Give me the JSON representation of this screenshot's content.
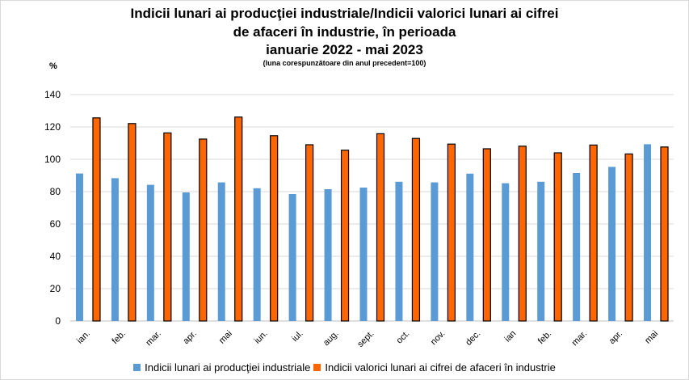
{
  "chart_data": {
    "type": "bar",
    "title_lines": [
      "Indicii lunari ai producţiei industriale/Indicii valorici lunari ai cifrei",
      "de afaceri în industrie, în perioada",
      "ianuarie 2022 - mai 2023"
    ],
    "subtitle": "(luna corespunzătoare din anul precedent=100)",
    "ylabel": "%",
    "ylim": [
      0,
      140
    ],
    "yticks": [
      "0",
      "20",
      "40",
      "60",
      "80",
      "100",
      "120",
      "140"
    ],
    "grid": true,
    "legend_position": "bottom",
    "categories": [
      "ian.",
      "feb.",
      "mar.",
      "apr.",
      "mai",
      "iun.",
      "iul.",
      "aug.",
      "sept.",
      "oct.",
      "nov.",
      "dec.",
      "ian",
      "feb.",
      "mar.",
      "apr.",
      "mai"
    ],
    "series": [
      {
        "name": "Indicii lunari ai producţiei industriale",
        "color": "#5b9bd5",
        "values": [
          91.2,
          88.3,
          84.2,
          79.5,
          85.7,
          82.1,
          78.5,
          81.5,
          82.5,
          86.1,
          85.7,
          91.1,
          85.2,
          86.1,
          91.5,
          95.3,
          109.3
        ]
      },
      {
        "name": "Indicii valorici lunari ai cifrei de afaceri în industrie",
        "color": "#ff6600",
        "values": [
          125.6,
          122.1,
          116.3,
          112.5,
          126.1,
          114.6,
          109.0,
          105.6,
          115.8,
          112.9,
          109.4,
          106.5,
          108.1,
          104.0,
          108.8,
          103.3,
          107.6
        ]
      }
    ]
  }
}
